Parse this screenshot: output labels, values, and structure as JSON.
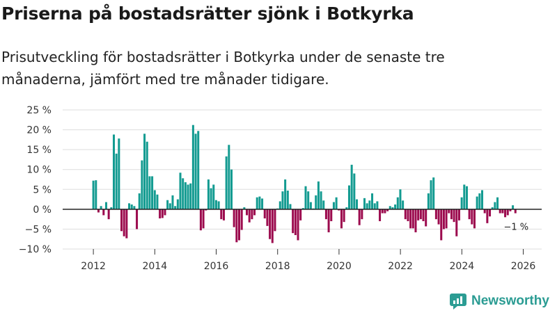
{
  "header": {
    "title": "Priserna på bostadsrätter sjönk i Botkyrka",
    "subtitle": "Prisutveckling för bostadsrätter i Botkyrka under de senaste tre månaderna, jämfört med tre månader tidigare."
  },
  "brand": {
    "name": "Newsworthy",
    "icon": "newsworthy-chart-logo-icon"
  },
  "colors": {
    "positive": "#139b91",
    "negative": "#9c0b4e",
    "grid": "#dddddd",
    "zero_line": "#222222",
    "brand": "#2b9c93"
  },
  "chart_data": {
    "type": "bar",
    "title": "Priserna på bostadsrätter sjönk i Botkyrka",
    "xlabel": "",
    "ylabel": "",
    "x_start": 2012.0,
    "step": 0.0833,
    "xlim": [
      2011.0,
      2026.6
    ],
    "ylim": [
      -10,
      25
    ],
    "y_ticks": [
      -10,
      -5,
      0,
      5,
      10,
      15,
      20,
      25
    ],
    "y_tick_labels": [
      "−10 %",
      "−5 %",
      "0 %",
      "5 %",
      "10 %",
      "15 %",
      "20 %",
      "25 %"
    ],
    "x_ticks": [
      2012,
      2014,
      2016,
      2018,
      2020,
      2022,
      2024,
      2026
    ],
    "x_tick_labels": [
      "2012",
      "2014",
      "2016",
      "2018",
      "2020",
      "2022",
      "2024",
      "2026"
    ],
    "grid": true,
    "values": [
      7.2,
      7.3,
      -0.8,
      0.8,
      -1.5,
      1.8,
      -2.5,
      0.5,
      18.8,
      14,
      17.8,
      -5.5,
      -6.8,
      -7.3,
      1.5,
      1.2,
      0.8,
      -5,
      4,
      12.3,
      19,
      17,
      8.3,
      8.3,
      4.8,
      3.7,
      -2.3,
      -2.2,
      -1.5,
      2.3,
      1.5,
      3.5,
      0.8,
      2.5,
      9.2,
      7.8,
      6.8,
      6.2,
      6.5,
      21.2,
      19,
      19.7,
      -5.3,
      -4.8,
      -0.3,
      7.5,
      5.3,
      6.2,
      2.3,
      2,
      -2.5,
      -2.8,
      13.3,
      16.2,
      10,
      -4.5,
      -8.3,
      -7.8,
      -5.2,
      0.5,
      -1.5,
      -3.3,
      -2.5,
      -1.5,
      3,
      3.2,
      2.7,
      -2.3,
      -4.2,
      -7.5,
      -8.5,
      -5.5,
      0.2,
      2,
      4.5,
      7.5,
      4.7,
      1.3,
      -6,
      -6.5,
      -7.8,
      -2.8,
      0.3,
      5.8,
      4.5,
      1.8,
      0.2,
      3.5,
      7,
      4.5,
      2.2,
      -2.5,
      -5.8,
      -3,
      1.8,
      3,
      -0.3,
      -4.8,
      -3.2,
      0.5,
      6,
      11.2,
      9,
      2.5,
      -4,
      -2.5,
      2.8,
      1.5,
      2.2,
      4,
      1.5,
      2,
      -3,
      -1,
      -1,
      -0.5,
      0.8,
      0.5,
      1.2,
      3,
      5,
      2.2,
      -2.5,
      -3,
      -4.8,
      -4.8,
      -5.8,
      -2.8,
      -2.5,
      -3,
      -4.3,
      4,
      7.3,
      8,
      -2.5,
      -3.8,
      -7.8,
      -5,
      -4.8,
      -1,
      -2.5,
      -3.2,
      -6.8,
      -2.8,
      3,
      6.2,
      5.8,
      -2.5,
      -3.8,
      -4.8,
      3.2,
      4,
      4.8,
      -1,
      -3.5,
      -1.8,
      0.5,
      1.8,
      3,
      -1,
      -1,
      -2,
      -1.5,
      -0.5,
      1,
      -1
    ],
    "annotation": {
      "text": "−1 %",
      "value": -1
    }
  }
}
